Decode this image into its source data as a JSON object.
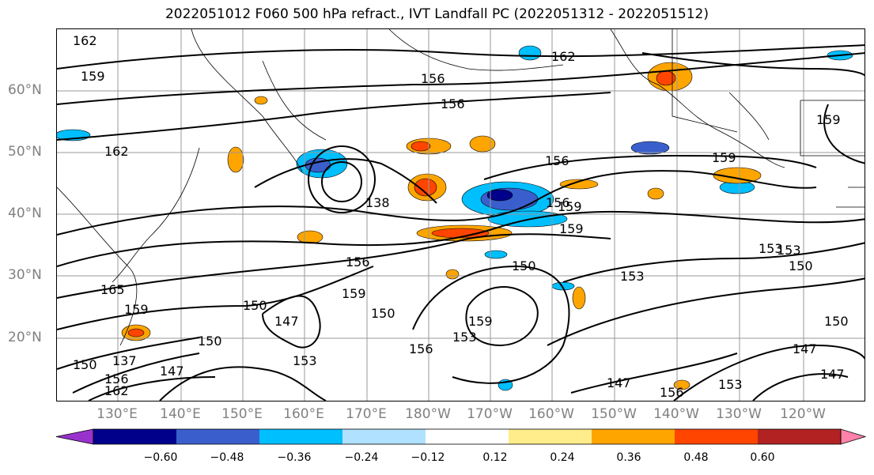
{
  "title": "2022051012 F060 500 hPa refract., IVT Landfall PC (2022051312 - 2022051512)",
  "lat_labels": [
    "60°N",
    "50°N",
    "40°N",
    "30°N",
    "20°N"
  ],
  "lon_labels": [
    "130°E",
    "140°E",
    "150°E",
    "160°E",
    "170°E",
    "180°W",
    "170°W",
    "160°W",
    "150°W",
    "140°W",
    "130°W",
    "120°W"
  ],
  "colorbar": {
    "ticks": [
      "−0.60",
      "−0.48",
      "−0.36",
      "−0.24",
      "−0.12",
      "0.12",
      "0.24",
      "0.36",
      "0.48",
      "0.60"
    ],
    "colors": [
      "#9932cc",
      "#00008b",
      "#3a5fcd",
      "#00bfff",
      "#b0e2ff",
      "#ffffff",
      "#ffec8b",
      "#ffa500",
      "#ff4500",
      "#b22222",
      "#ff82ab"
    ]
  },
  "contour_labels": [
    "162",
    "159",
    "156",
    "156",
    "162",
    "159",
    "162",
    "156",
    "159",
    "156",
    "153",
    "150",
    "159",
    "150",
    "153",
    "165",
    "150",
    "159",
    "150",
    "147",
    "159",
    "150",
    "156",
    "159",
    "153",
    "147",
    "147",
    "147",
    "156",
    "153",
    "147",
    "150",
    "137",
    "150",
    "138",
    "156",
    "156",
    "159",
    "162",
    "153",
    "153"
  ]
}
